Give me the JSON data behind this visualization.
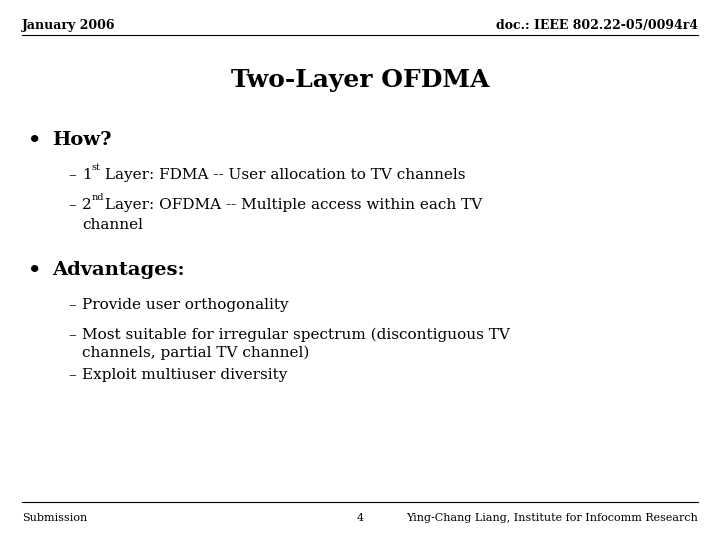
{
  "bg_color": "#ffffff",
  "header_left": "January 2006",
  "header_right": "doc.: IEEE 802.22-05/0094r4",
  "title": "Two-Layer OFDMA",
  "bullet1": "How?",
  "bullet2": "Advantages:",
  "sub1a_num": "1",
  "sub1a_sup": "st",
  "sub1a_text": " Layer: FDMA -- User allocation to TV channels",
  "sub1b_num": "2",
  "sub1b_sup": "nd",
  "sub1b_text": " Layer: OFDMA -- Multiple access within each TV",
  "sub1b_cont": "channel",
  "sub2a": "Provide user orthogonality",
  "sub2b_line1": "Most suitable for irregular spectrum (discontiguous TV",
  "sub2b_line2": "channels, partial TV channel)",
  "sub2c": "Exploit multiuser diversity",
  "footer_left": "Submission",
  "footer_center": "4",
  "footer_right": "Ying-Chang Liang, Institute for Infocomm Research",
  "text_color": "#000000",
  "font_family": "DejaVu Serif",
  "header_fontsize": 9,
  "title_fontsize": 18,
  "bullet_fontsize": 14,
  "sub_fontsize": 11,
  "footer_fontsize": 8
}
